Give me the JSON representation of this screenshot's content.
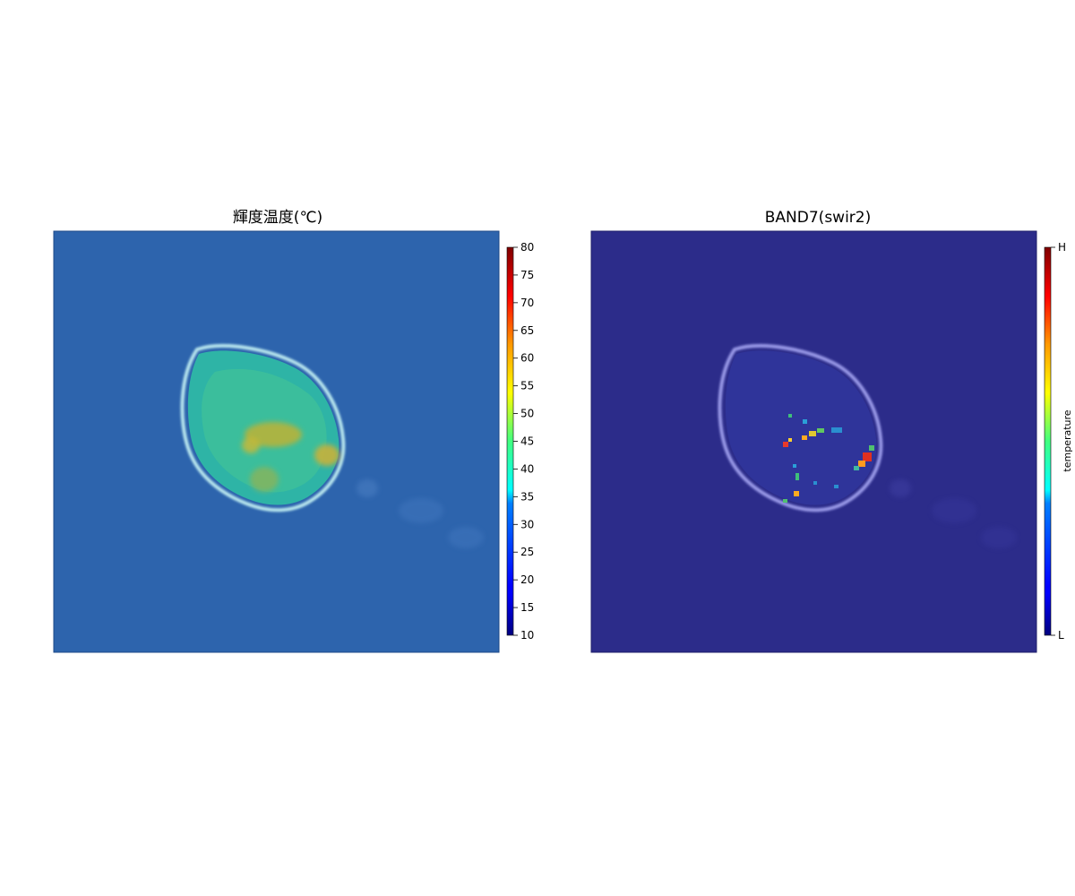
{
  "chart_data": [
    {
      "type": "heatmap",
      "title": "輝度温度(℃)",
      "xlabel": "",
      "ylabel": "",
      "colorbar": {
        "min": 10,
        "max": 80,
        "ticks": [
          10,
          15,
          20,
          25,
          30,
          35,
          40,
          45,
          50,
          55,
          60,
          65,
          70,
          75,
          80
        ],
        "label": "",
        "colormap": "jet"
      },
      "background_color": "#2d64ad",
      "features": [
        {
          "kind": "island",
          "value": 38,
          "cx": 0.0,
          "cy": 0.0
        },
        {
          "kind": "hotspot",
          "value": 50,
          "cx": 0.05,
          "cy": -0.05
        },
        {
          "kind": "hotspot",
          "value": 52,
          "cx": 0.35,
          "cy": 0.12
        },
        {
          "kind": "hotspot",
          "value": 47,
          "cx": -0.1,
          "cy": 0.3
        }
      ]
    },
    {
      "type": "heatmap",
      "title": "BAND7(swir2)",
      "xlabel": "",
      "ylabel": "",
      "colorbar": {
        "min": "L",
        "max": "H",
        "ticks": [
          "L",
          "H"
        ],
        "label": "temperature",
        "colormap": "jet"
      },
      "background_color": "#2c2c8a",
      "features": [
        {
          "kind": "island",
          "value": "L",
          "cx": 0.0,
          "cy": 0.0
        },
        {
          "kind": "hotspot",
          "value": "H",
          "cx": 0.45,
          "cy": 0.1
        },
        {
          "kind": "hotspot",
          "value": "mid",
          "cx": 0.1,
          "cy": -0.1
        },
        {
          "kind": "hotspot",
          "value": "mid",
          "cx": -0.2,
          "cy": 0.0
        }
      ]
    }
  ]
}
